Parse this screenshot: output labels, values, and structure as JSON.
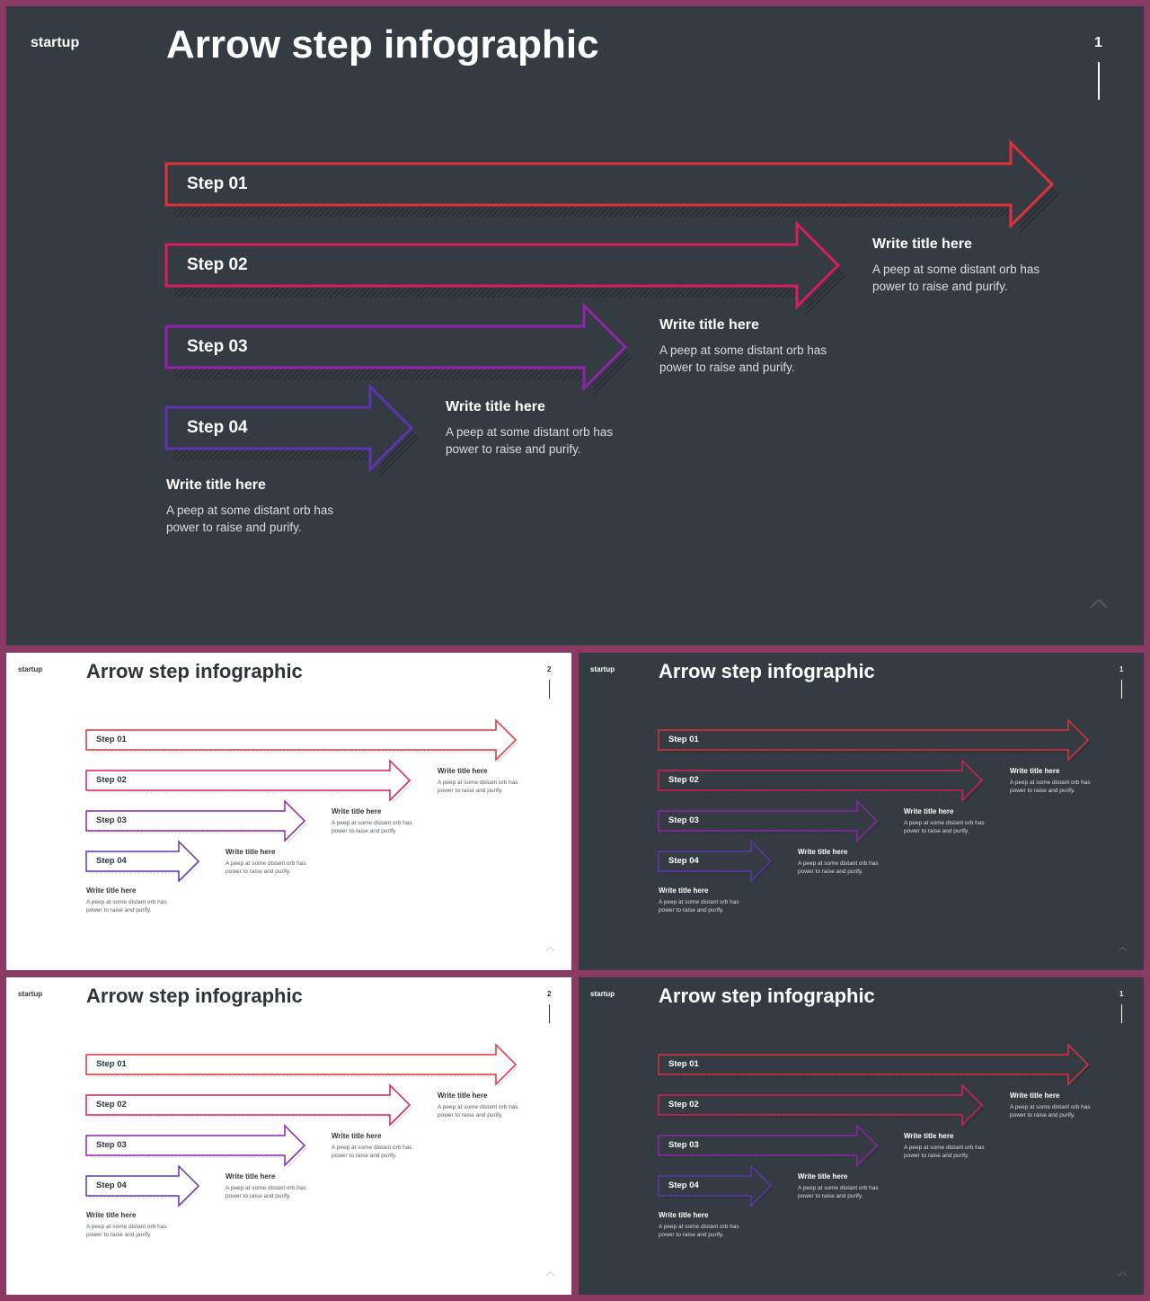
{
  "slides": [
    {
      "theme": "dark",
      "brand": "startup",
      "title": "Arrow step infographic",
      "page": "1"
    },
    {
      "theme": "light",
      "brand": "startup",
      "title": "Arrow step infographic",
      "page": "2"
    },
    {
      "theme": "dark",
      "brand": "startup",
      "title": "Arrow step infographic",
      "page": "1"
    },
    {
      "theme": "light",
      "brand": "startup",
      "title": "Arrow step infographic",
      "page": "2"
    },
    {
      "theme": "dark",
      "brand": "startup",
      "title": "Arrow step infographic",
      "page": "1"
    }
  ],
  "steps": [
    {
      "label": "Step 01",
      "color": "#e0303a",
      "info_title": "",
      "info_desc": ""
    },
    {
      "label": "Step 02",
      "color": "#d81e5b",
      "info_title": "Write title here",
      "info_desc_line1": "A peep at some distant orb has",
      "info_desc_line2": "power to raise and purify."
    },
    {
      "label": "Step 03",
      "color": "#8e24aa",
      "info_title": "Write title here",
      "info_desc_line1": "A peep at some distant orb has",
      "info_desc_line2": "power to raise and purify."
    },
    {
      "label": "Step 04",
      "color": "#5e35b1",
      "info_title": "Write title here",
      "info_desc_line1": "A peep at some distant orb has",
      "info_desc_line2": "power to raise and purify."
    }
  ],
  "bottom_info": {
    "title": "Write title here",
    "line1": "A peep at some distant orb has",
    "line2": "power to raise and purify."
  },
  "colors": {
    "frame": "#8a3a63",
    "dark_bg": "#353b42",
    "light_bg": "#ffffff"
  },
  "icons": {
    "up": "chevron-up-icon"
  }
}
